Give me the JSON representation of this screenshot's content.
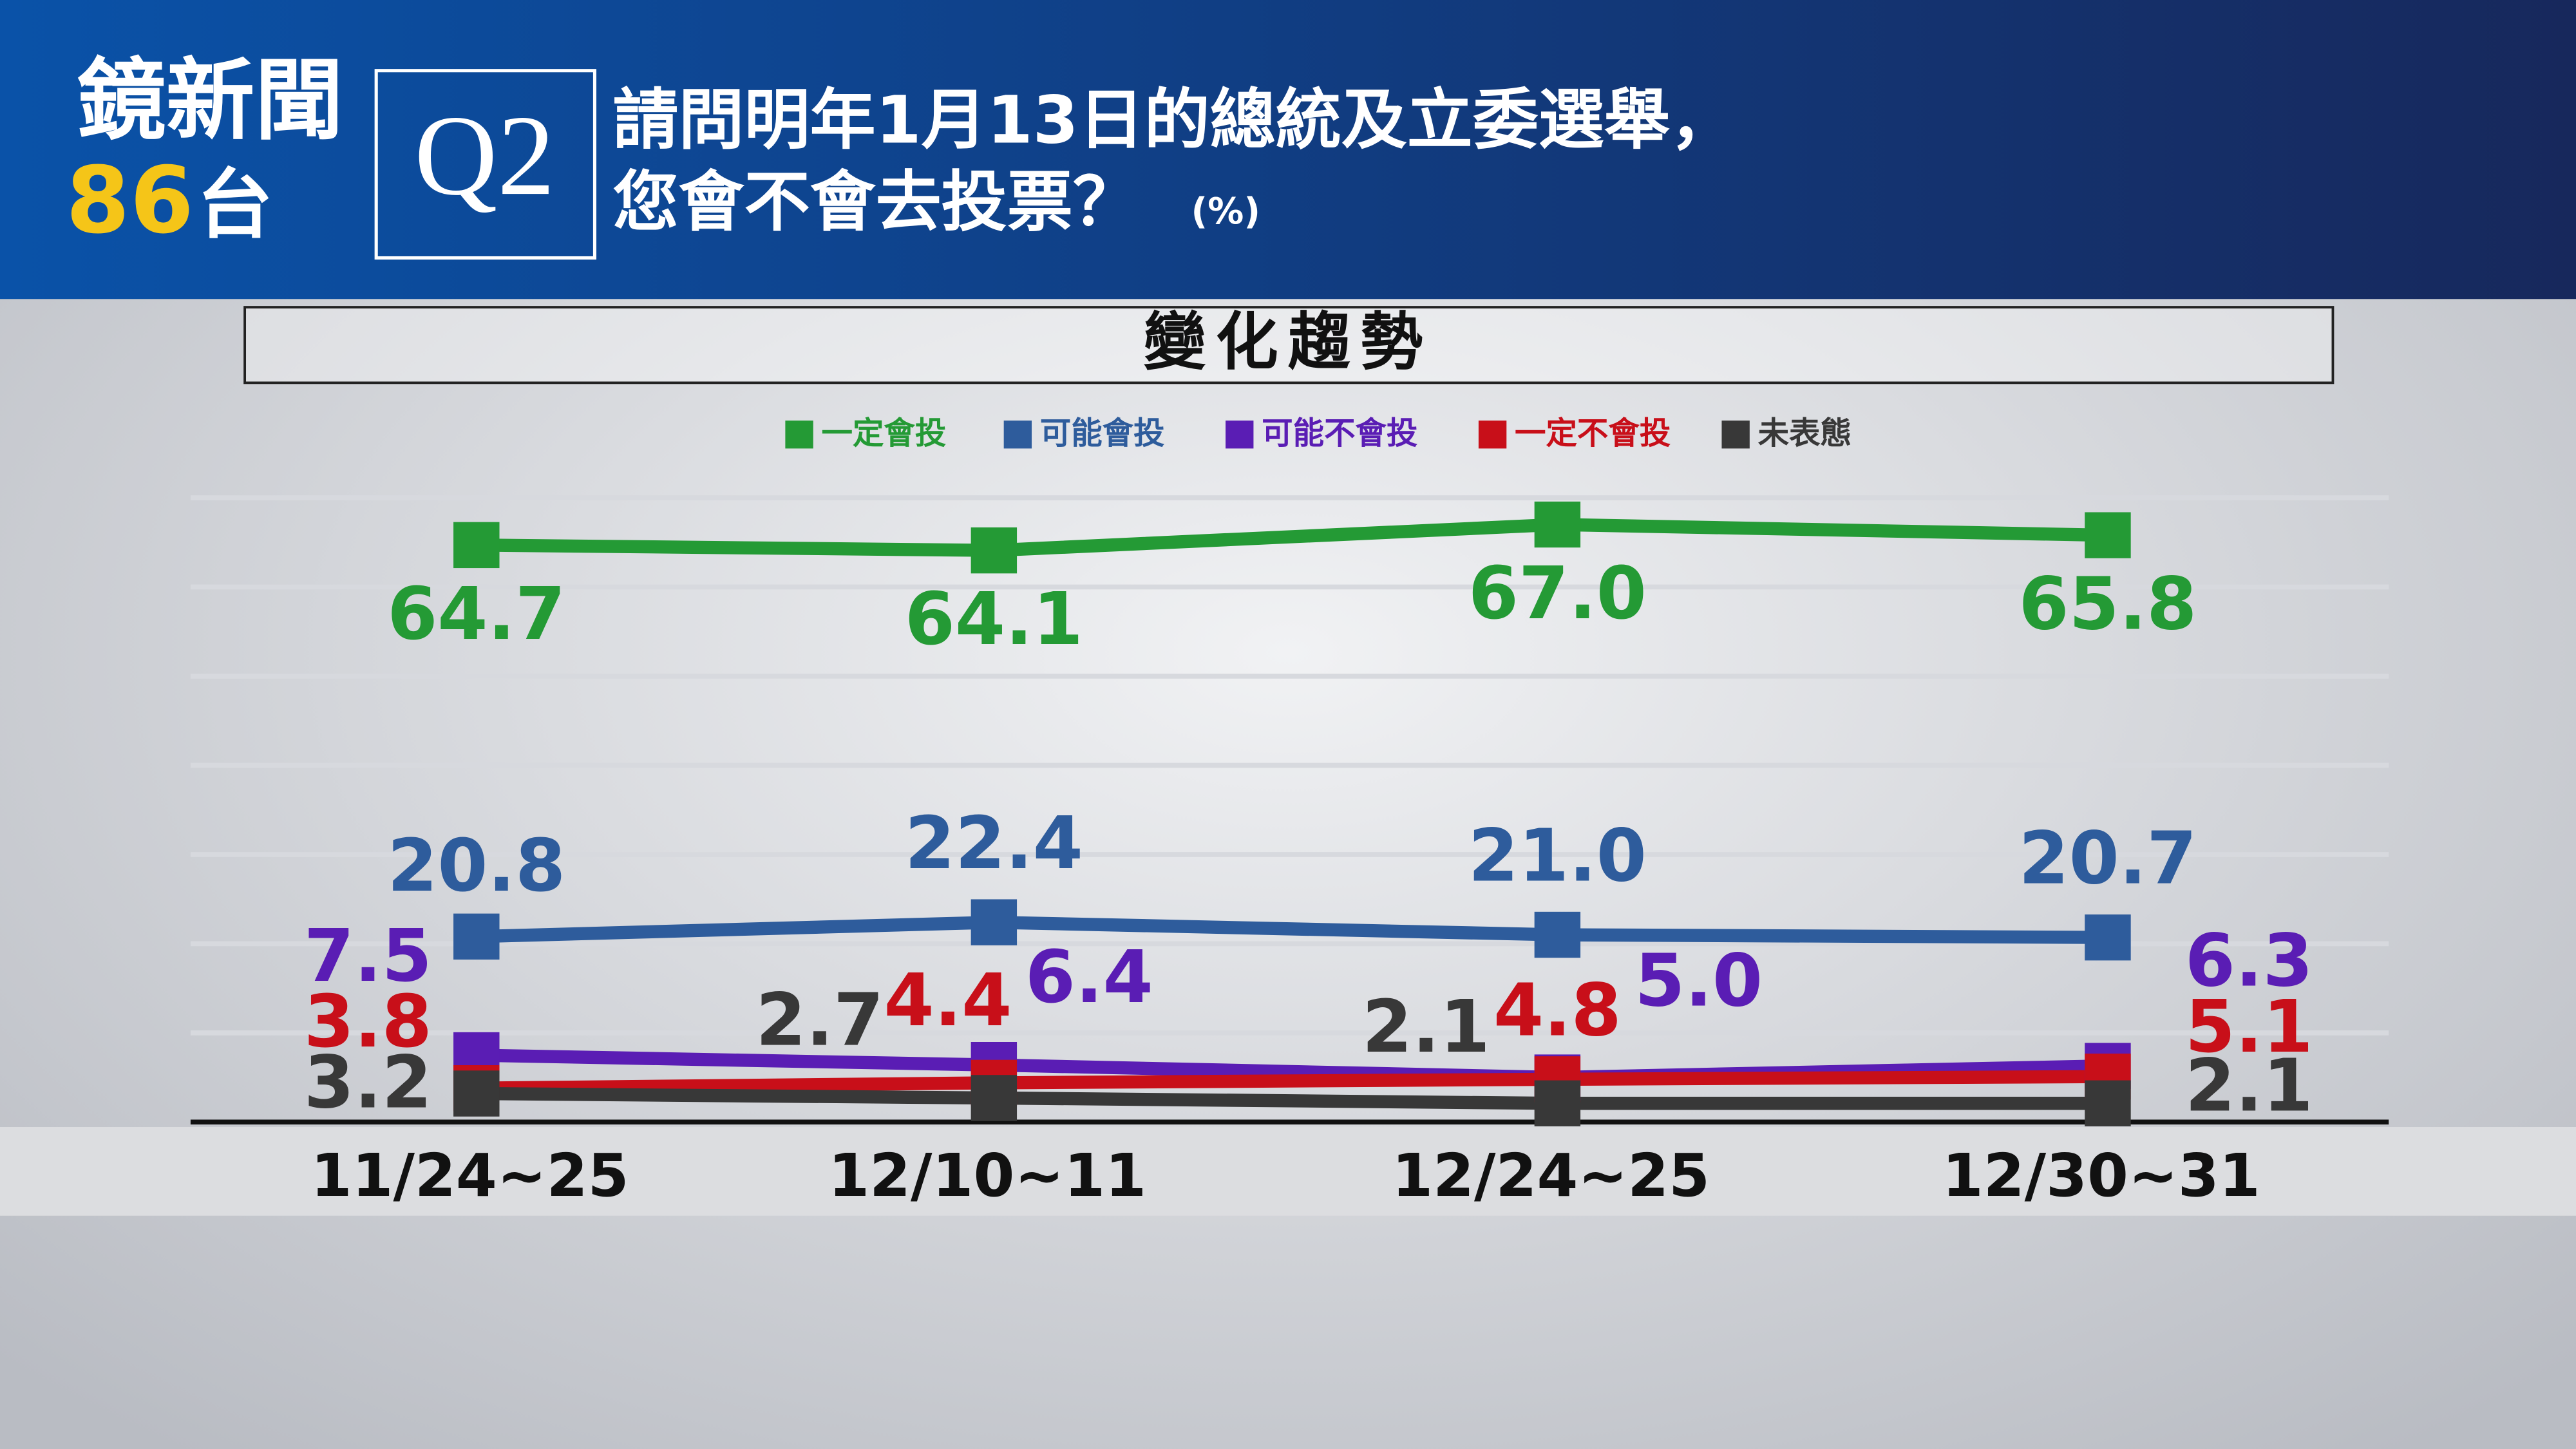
{
  "header": {
    "logo": "鏡新聞",
    "channel_number": "86",
    "channel_suffix": "台",
    "question_id": "Q2",
    "question_line1": "請問明年1月13日的總統及立委選舉，",
    "question_line2": "您會不會去投票？",
    "unit": "(%)"
  },
  "chart_data": {
    "type": "line",
    "title": "變化趨勢",
    "categories": [
      "11/24~25",
      "12/10~11",
      "12/24~25",
      "12/30~31"
    ],
    "ylim": [
      0,
      70
    ],
    "yticks": [
      0,
      10,
      20,
      30,
      40,
      50,
      60,
      70
    ],
    "grid": true,
    "series": [
      {
        "name": "一定會投",
        "color": "#249a35",
        "values": [
          64.7,
          64.1,
          67.0,
          65.8
        ],
        "value_labels": [
          "64.7",
          "64.1",
          "67.0",
          "65.8"
        ]
      },
      {
        "name": "可能會投",
        "color": "#2e5c9c",
        "values": [
          20.8,
          22.4,
          21.0,
          20.7
        ],
        "value_labels": [
          "20.8",
          "22.4",
          "21.0",
          "20.7"
        ]
      },
      {
        "name": "可能不會投",
        "color": "#5a1db4",
        "values": [
          7.5,
          6.4,
          5.0,
          6.3
        ],
        "value_labels": [
          "7.5",
          "6.4",
          "5.0",
          "6.3"
        ]
      },
      {
        "name": "一定不會投",
        "color": "#c80f19",
        "values": [
          3.8,
          4.4,
          4.8,
          5.1
        ],
        "value_labels": [
          "3.8",
          "4.4",
          "4.8",
          "5.1"
        ]
      },
      {
        "name": "未表態",
        "color": "#383838",
        "values": [
          3.2,
          2.7,
          2.1,
          2.1
        ],
        "value_labels": [
          "3.2",
          "2.7",
          "2.1",
          "2.1"
        ]
      }
    ]
  }
}
